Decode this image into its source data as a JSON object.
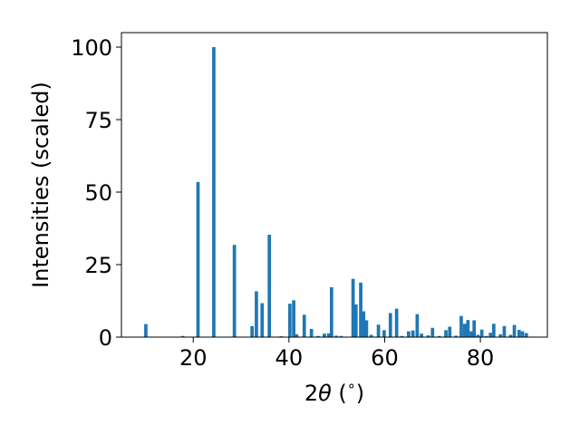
{
  "chart_data": {
    "type": "bar",
    "xlabel_prefix": "2",
    "xlabel_symbol": "θ",
    "xlabel_suffix": " (",
    "xlabel_unit": "∘",
    "xlabel_close": ")",
    "ylabel": "Intensities (scaled)",
    "xlim": [
      5,
      94
    ],
    "ylim": [
      0,
      105
    ],
    "xticks": [
      20,
      40,
      60,
      80
    ],
    "yticks": [
      0,
      25,
      50,
      75,
      100
    ],
    "bar_width": 0.7,
    "color": "#1f77b4",
    "x": [
      10.1,
      17.8,
      21.0,
      24.3,
      28.6,
      32.3,
      33.2,
      34.4,
      35.9,
      38.4,
      40.2,
      41.0,
      41.6,
      43.2,
      44.7,
      46.1,
      47.4,
      48.3,
      48.9,
      49.9,
      50.9,
      53.4,
      54.0,
      55.0,
      55.6,
      56.2,
      57.2,
      58.7,
      59.9,
      61.2,
      62.5,
      63.6,
      65.0,
      65.9,
      66.8,
      67.7,
      69.1,
      70.0,
      71.4,
      72.8,
      73.6,
      74.9,
      76.0,
      76.7,
      77.4,
      78.1,
      78.7,
      79.5,
      80.3,
      81.2,
      82.1,
      82.8,
      84.2,
      85.0,
      86.3,
      87.1,
      88.1,
      88.8,
      89.6
    ],
    "values": [
      4.5,
      0.4,
      53.5,
      100,
      31.8,
      3.8,
      15.8,
      11.7,
      35.3,
      0.3,
      11.5,
      12.7,
      1.0,
      7.7,
      2.8,
      0.4,
      1.2,
      1.3,
      17.2,
      0.5,
      0.4,
      20.1,
      11.3,
      18.8,
      8.9,
      5.8,
      0.8,
      4.3,
      2.4,
      8.3,
      9.8,
      0.4,
      2.0,
      2.3,
      7.9,
      1.2,
      0.6,
      3.2,
      0.4,
      2.4,
      3.6,
      0.5,
      7.3,
      4.6,
      5.9,
      2.0,
      5.8,
      0.8,
      2.6,
      0.4,
      1.5,
      4.6,
      1.0,
      3.8,
      0.8,
      4.2,
      2.5,
      2.0,
      1.4
    ]
  }
}
